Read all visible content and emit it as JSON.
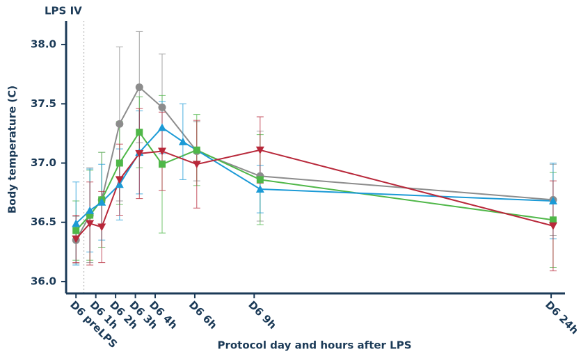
{
  "chart_data": {
    "type": "line",
    "annotation": "LPS IV",
    "annotation_x": 0.4,
    "x_label": "Protocol day and hours after LPS",
    "y_label": "Body temperature (C)",
    "xlim": [
      -0.5,
      24.7
    ],
    "ylim": [
      35.9,
      38.2
    ],
    "xticks": [
      {
        "value": 0,
        "label": "D6 preLPS"
      },
      {
        "value": 1,
        "label": "D6 1h"
      },
      {
        "value": 2,
        "label": "D6 2h"
      },
      {
        "value": 3,
        "label": "D6 3h"
      },
      {
        "value": 4,
        "label": "D6 4h"
      },
      {
        "value": 6,
        "label": "D6 6h"
      },
      {
        "value": 9,
        "label": "D6 9h"
      },
      {
        "value": 24,
        "label": "D6 24h"
      }
    ],
    "yticks": [
      {
        "value": 36,
        "label": "36.0"
      },
      {
        "value": 36.5,
        "label": "36.5"
      },
      {
        "value": 37,
        "label": "37.0"
      },
      {
        "value": 37.5,
        "label": "37.5"
      },
      {
        "value": 38,
        "label": "38.0"
      }
    ],
    "series": [
      {
        "color": "#8c8c8c",
        "marker": "circle",
        "x": [
          0,
          0.7,
          1.3,
          2.2,
          3.2,
          4.35,
          6.1,
          9.3,
          24.1
        ],
        "values": [
          36.35,
          36.56,
          36.69,
          37.33,
          37.64,
          37.47,
          37.1,
          36.89,
          36.69
        ],
        "errors": [
          0.2,
          0.4,
          0.4,
          0.65,
          0.47,
          0.45,
          0.25,
          0.38,
          0.3
        ]
      },
      {
        "color": "#4fb748",
        "marker": "square",
        "x": [
          0,
          0.7,
          1.3,
          2.2,
          3.2,
          4.35,
          6.1,
          9.3,
          24.1
        ],
        "values": [
          36.43,
          36.56,
          36.69,
          37.0,
          37.26,
          36.99,
          37.11,
          36.86,
          36.52
        ],
        "errors": [
          0.25,
          0.38,
          0.4,
          0.35,
          0.3,
          0.58,
          0.3,
          0.38,
          0.4
        ]
      },
      {
        "color": "#1b9ad6",
        "marker": "triangle",
        "x": [
          0,
          0.7,
          1.3,
          2.2,
          3.2,
          4.35,
          5.4,
          9.3,
          24.1
        ],
        "values": [
          36.49,
          36.6,
          36.67,
          36.82,
          37.09,
          37.3,
          37.18,
          36.78,
          36.68
        ],
        "errors": [
          0.35,
          0.35,
          0.32,
          0.3,
          0.35,
          0.22,
          0.32,
          0.2,
          0.32
        ]
      },
      {
        "color": "#b8283a",
        "marker": "triangle-down",
        "x": [
          0,
          0.7,
          1.3,
          2.2,
          3.2,
          4.35,
          6.1,
          9.3,
          24.1
        ],
        "values": [
          36.36,
          36.49,
          36.46,
          36.86,
          37.08,
          37.1,
          36.99,
          37.11,
          36.47
        ],
        "errors": [
          0.2,
          0.35,
          0.3,
          0.3,
          0.38,
          0.33,
          0.37,
          0.28,
          0.38
        ]
      }
    ]
  }
}
